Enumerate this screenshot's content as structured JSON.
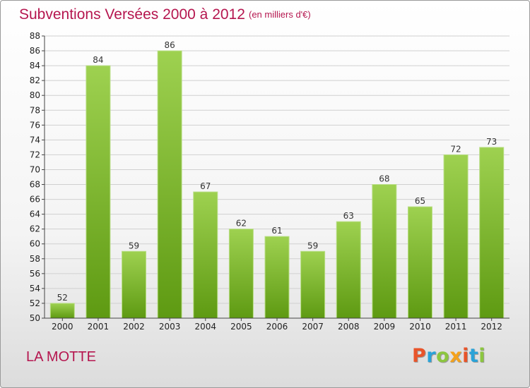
{
  "header": {
    "title": "Subventions Versées 2000 à 2012",
    "subtitle": "(en milliers d'€)"
  },
  "footer": {
    "commune": "LA MOTTE",
    "logo_text": "Proxiti"
  },
  "colors": {
    "accent": "#b5164f",
    "bar_top": "#9ed150",
    "bar_bottom": "#5e9a12",
    "grid": "#d0d0d0",
    "logo": [
      "#e8542a",
      "#2aa3d8",
      "#8cc63f",
      "#f4a21c",
      "#e8542a",
      "#2aa3d8",
      "#8cc63f"
    ]
  },
  "chart_data": {
    "type": "bar",
    "title": "Subventions Versées 2000 à 2012",
    "subtitle": "(en milliers d'€)",
    "xlabel": "",
    "ylabel": "",
    "categories": [
      "2000",
      "2001",
      "2002",
      "2003",
      "2004",
      "2005",
      "2006",
      "2007",
      "2008",
      "2009",
      "2010",
      "2011",
      "2012"
    ],
    "values": [
      52,
      84,
      59,
      86,
      67,
      62,
      61,
      59,
      63,
      68,
      65,
      72,
      73
    ],
    "ylim": [
      50,
      88
    ],
    "yticks": [
      50,
      52,
      54,
      56,
      58,
      60,
      62,
      64,
      66,
      68,
      70,
      72,
      74,
      76,
      78,
      80,
      82,
      84,
      86,
      88
    ],
    "grid": true,
    "data_labels": true
  }
}
